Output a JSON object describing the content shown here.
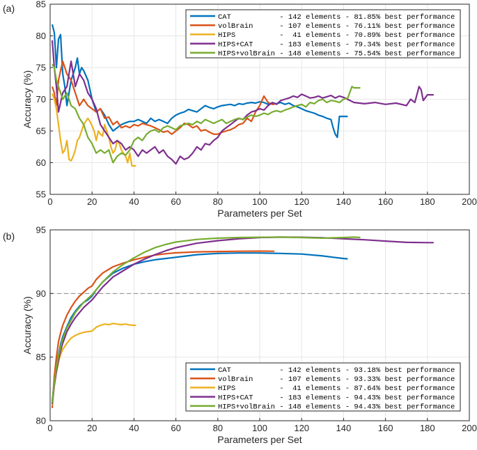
{
  "chart_data": [
    {
      "type": "line",
      "panel_label": "(a)",
      "xlabel": "Parameters per Set",
      "ylabel": "Accuracy (%)",
      "xlim": [
        0,
        200
      ],
      "ylim": [
        55,
        85
      ],
      "xticks": [
        "0",
        "20",
        "40",
        "60",
        "80",
        "100",
        "120",
        "140",
        "160",
        "180",
        "200"
      ],
      "yticks": [
        "55",
        "60",
        "65",
        "70",
        "75",
        "80",
        "85"
      ],
      "legend_position": "top-right",
      "series": [
        {
          "name": "CAT",
          "legend": "CAT           - 142 elements - 81.85% best performance",
          "color": "#0072BD",
          "x": [
            1,
            2,
            3,
            4,
            5,
            6,
            7,
            8,
            10,
            12,
            13,
            14,
            15,
            16,
            18,
            20,
            22,
            24,
            26,
            28,
            30,
            32,
            34,
            36,
            38,
            40,
            42,
            44,
            46,
            48,
            50,
            52,
            54,
            56,
            58,
            60,
            62,
            64,
            66,
            68,
            70,
            72,
            74,
            76,
            78,
            80,
            82,
            84,
            86,
            88,
            90,
            92,
            94,
            96,
            98,
            100,
            102,
            104,
            106,
            108,
            110,
            112,
            114,
            116,
            118,
            120,
            122,
            124,
            126,
            128,
            130,
            132,
            134,
            135,
            136,
            137,
            138,
            139,
            140,
            141,
            142
          ],
          "y": [
            81.8,
            80.5,
            75,
            79.5,
            80.2,
            74,
            72,
            69,
            73,
            75,
            76.5,
            74,
            75,
            74.5,
            73,
            70,
            68,
            68.5,
            67.5,
            66,
            65,
            65.5,
            66,
            66.3,
            66.5,
            66.5,
            66.8,
            66.5,
            66.2,
            67,
            66.5,
            66.8,
            66.5,
            66.2,
            67,
            67.5,
            67.8,
            68,
            68.4,
            68.2,
            68,
            68.5,
            69,
            68.7,
            68.5,
            68.8,
            69,
            69.1,
            69.2,
            69,
            69.3,
            69.2,
            69.4,
            69.5,
            69.4,
            69.6,
            69.5,
            69.2,
            69.4,
            69.3,
            69.5,
            69.2,
            69.4,
            69,
            68.8,
            68.5,
            68.2,
            68,
            67.8,
            67.5,
            67.3,
            67,
            66.8,
            65.5,
            64.5,
            64,
            67.3,
            67.3,
            67.3,
            67.3,
            67.3
          ]
        },
        {
          "name": "volBrain",
          "legend": "volBrain      - 107 elements - 76.11% best performance",
          "color": "#D95319",
          "x": [
            1,
            2,
            3,
            4,
            5,
            6,
            7,
            8,
            10,
            12,
            14,
            16,
            18,
            20,
            22,
            24,
            26,
            28,
            30,
            32,
            34,
            36,
            38,
            40,
            42,
            44,
            46,
            48,
            50,
            52,
            54,
            56,
            58,
            60,
            62,
            64,
            66,
            68,
            70,
            72,
            74,
            76,
            78,
            80,
            82,
            84,
            86,
            88,
            90,
            92,
            94,
            96,
            98,
            100,
            102,
            104,
            106,
            107
          ],
          "y": [
            72,
            71,
            69,
            73,
            74.5,
            76,
            75,
            74,
            73,
            71,
            69,
            70,
            69,
            68.5,
            68,
            68.5,
            67,
            67.2,
            66,
            66.5,
            65.5,
            65.8,
            65.5,
            66,
            65.8,
            66.2,
            66,
            65.8,
            65.5,
            65.2,
            64.8,
            65,
            64.5,
            65,
            65.5,
            66.2,
            66,
            65.5,
            65.8,
            65,
            65.2,
            64.8,
            64.5,
            64.5,
            64.8,
            65,
            65.2,
            65.5,
            66,
            66.2,
            67,
            66.5,
            68,
            69,
            70.5,
            69.5,
            69.2,
            69.2
          ]
        },
        {
          "name": "HIPS",
          "legend": "HIPS          -  41 elements - 70.89% best performance",
          "color": "#EDB120",
          "x": [
            1,
            2,
            3,
            4,
            5,
            6,
            7,
            8,
            9,
            10,
            11,
            12,
            13,
            14,
            15,
            16,
            17,
            18,
            19,
            20,
            21,
            22,
            23,
            24,
            25,
            26,
            27,
            28,
            29,
            30,
            31,
            32,
            33,
            34,
            35,
            36,
            37,
            38,
            39,
            40,
            41
          ],
          "y": [
            70.9,
            70,
            68.5,
            66,
            63.5,
            61.5,
            62,
            63.5,
            60.5,
            60.3,
            61,
            62,
            63.5,
            64,
            65,
            66,
            66.5,
            67,
            66.5,
            65.8,
            65,
            63.5,
            65,
            64.5,
            64.2,
            66,
            65,
            64,
            62.5,
            61.5,
            62,
            63.5,
            63,
            62,
            61.5,
            61,
            60,
            61.5,
            59.5,
            59.5,
            59.5
          ]
        },
        {
          "name": "HIPS+CAT",
          "legend": "HIPS+CAT      - 183 elements - 79.34% best performance",
          "color": "#7E2F8E",
          "x": [
            1,
            2,
            3,
            4,
            6,
            8,
            10,
            12,
            14,
            16,
            18,
            20,
            22,
            24,
            26,
            28,
            30,
            32,
            34,
            36,
            38,
            40,
            42,
            44,
            46,
            48,
            50,
            52,
            54,
            56,
            58,
            60,
            62,
            64,
            66,
            68,
            70,
            72,
            74,
            76,
            78,
            80,
            82,
            84,
            86,
            88,
            90,
            92,
            94,
            96,
            98,
            100,
            102,
            104,
            106,
            108,
            110,
            112,
            114,
            116,
            118,
            120,
            122,
            124,
            126,
            128,
            130,
            132,
            134,
            136,
            138,
            140,
            145,
            150,
            155,
            160,
            165,
            170,
            172,
            174,
            176,
            177,
            178,
            180,
            183
          ],
          "y": [
            79.3,
            75,
            72,
            68,
            71,
            72,
            76,
            72,
            74,
            73,
            71,
            70,
            68.5,
            66,
            65,
            64,
            63,
            63.5,
            63,
            62,
            62.5,
            62,
            61,
            62,
            61.5,
            62,
            62.5,
            61.5,
            62,
            61,
            60.5,
            59.8,
            61,
            60.5,
            60.8,
            61.5,
            62.5,
            62,
            63,
            62.8,
            63.5,
            64,
            65,
            65.5,
            66,
            66.5,
            67,
            66.8,
            67.5,
            68,
            68.2,
            68.5,
            68.3,
            69,
            69.5,
            69.2,
            69.8,
            70,
            70.2,
            70.5,
            70.3,
            70.8,
            70.5,
            70.2,
            70.3,
            70.5,
            70.2,
            70.4,
            70.6,
            70.2,
            70.5,
            70.3,
            69.5,
            69.3,
            69.5,
            69.2,
            69.4,
            69,
            70,
            69.5,
            72,
            71.5,
            69.8,
            70.7,
            70.7
          ]
        },
        {
          "name": "HIPS+volBrain",
          "legend": "HIPS+volBrain - 148 elements - 75.54% best performance",
          "color": "#77AC30",
          "x": [
            1,
            2,
            3,
            4,
            6,
            8,
            10,
            12,
            14,
            16,
            18,
            20,
            22,
            24,
            26,
            28,
            30,
            32,
            34,
            36,
            38,
            40,
            42,
            44,
            46,
            48,
            50,
            52,
            54,
            56,
            58,
            60,
            62,
            64,
            66,
            68,
            70,
            72,
            74,
            76,
            78,
            80,
            82,
            84,
            86,
            88,
            90,
            92,
            94,
            96,
            98,
            100,
            102,
            104,
            106,
            108,
            110,
            112,
            114,
            116,
            118,
            120,
            122,
            124,
            126,
            128,
            130,
            132,
            134,
            136,
            138,
            140,
            142,
            144,
            145,
            146,
            148
          ],
          "y": [
            75.5,
            75,
            73,
            72,
            70,
            71,
            69,
            68.5,
            67,
            66,
            64,
            63,
            61.5,
            62,
            61.5,
            62,
            60,
            61,
            61.5,
            61.2,
            62,
            63.5,
            64,
            63.5,
            64.5,
            65,
            65.2,
            64.8,
            65.5,
            65.8,
            65.5,
            65.2,
            65.8,
            66,
            66.2,
            66,
            66.5,
            66.2,
            66.8,
            66.5,
            66.2,
            66.5,
            66.8,
            66.2,
            66.5,
            66.8,
            67,
            66.8,
            67.2,
            67.5,
            67.3,
            67.5,
            67.8,
            67.6,
            68,
            68.2,
            68,
            68.3,
            68.5,
            68.8,
            69,
            69.2,
            68.8,
            69.5,
            69.3,
            69.8,
            70,
            69.5,
            69.8,
            69.7,
            69.5,
            70,
            70.2,
            72,
            71.8,
            71.8,
            71.8
          ]
        }
      ]
    },
    {
      "type": "line",
      "panel_label": "(b)",
      "xlabel": "Parameters per Set",
      "ylabel": "Accuracy (%)",
      "xlim": [
        0,
        200
      ],
      "ylim": [
        80,
        95
      ],
      "xticks": [
        "0",
        "20",
        "40",
        "60",
        "80",
        "100",
        "120",
        "140",
        "160",
        "180",
        "200"
      ],
      "yticks": [
        "80",
        "85",
        "90",
        "95"
      ],
      "reference_line": 90,
      "legend_position": "bottom-right",
      "series": [
        {
          "name": "CAT",
          "legend": "CAT           - 142 elements - 93.18% best performance",
          "color": "#0072BD",
          "x": [
            1,
            2,
            3,
            4,
            5,
            6,
            8,
            10,
            12,
            14,
            16,
            18,
            20,
            22,
            25,
            30,
            35,
            40,
            45,
            50,
            55,
            60,
            70,
            80,
            90,
            100,
            110,
            120,
            130,
            135,
            140,
            142
          ],
          "y": [
            81.5,
            83.2,
            84.3,
            85.2,
            86,
            86.6,
            87.4,
            88.1,
            88.6,
            89,
            89.3,
            89.5,
            89.8,
            90.3,
            90.9,
            91.6,
            92,
            92.3,
            92.5,
            92.65,
            92.75,
            92.85,
            93.05,
            93.15,
            93.18,
            93.18,
            93.15,
            93.1,
            92.95,
            92.85,
            92.75,
            92.72
          ]
        },
        {
          "name": "volBrain",
          "legend": "volBrain      - 107 elements - 93.33% best performance",
          "color": "#D95319",
          "x": [
            1,
            2,
            3,
            4,
            5,
            6,
            8,
            10,
            12,
            14,
            16,
            18,
            20,
            22,
            25,
            30,
            35,
            40,
            45,
            50,
            55,
            60,
            70,
            80,
            90,
            100,
            107
          ],
          "y": [
            81,
            83.5,
            85,
            86.2,
            86.9,
            87.5,
            88.3,
            88.9,
            89.4,
            89.8,
            90.1,
            90.4,
            90.6,
            91.1,
            91.6,
            92.1,
            92.4,
            92.65,
            92.85,
            93.02,
            93.12,
            93.2,
            93.27,
            93.3,
            93.32,
            93.33,
            93.32
          ]
        },
        {
          "name": "HIPS",
          "legend": "HIPS          -  41 elements - 87.64% best performance",
          "color": "#EDB120",
          "x": [
            1,
            2,
            3,
            4,
            5,
            6,
            8,
            10,
            12,
            14,
            16,
            18,
            20,
            22,
            24,
            26,
            28,
            30,
            32,
            34,
            36,
            38,
            40,
            41
          ],
          "y": [
            81.2,
            82.8,
            83.8,
            84.6,
            85.2,
            85.6,
            86.1,
            86.5,
            86.7,
            86.85,
            86.95,
            87,
            87.05,
            87.35,
            87.5,
            87.6,
            87.55,
            87.64,
            87.6,
            87.55,
            87.6,
            87.52,
            87.5,
            87.5
          ]
        },
        {
          "name": "HIPS+CAT",
          "legend": "HIPS+CAT      - 183 elements - 94.43% best performance",
          "color": "#7E2F8E",
          "x": [
            1,
            2,
            3,
            4,
            5,
            6,
            8,
            10,
            12,
            14,
            16,
            18,
            20,
            22,
            25,
            30,
            35,
            40,
            45,
            50,
            55,
            60,
            70,
            80,
            90,
            100,
            110,
            120,
            130,
            140,
            150,
            160,
            170,
            180,
            183
          ],
          "y": [
            81.3,
            82.8,
            83.9,
            84.8,
            85.5,
            86.1,
            87,
            87.6,
            88.1,
            88.5,
            88.9,
            89.2,
            89.5,
            89.9,
            90.5,
            91.3,
            91.8,
            92.3,
            92.7,
            93.05,
            93.35,
            93.6,
            93.95,
            94.15,
            94.3,
            94.4,
            94.43,
            94.42,
            94.38,
            94.3,
            94.22,
            94.12,
            94.02,
            94,
            94
          ]
        },
        {
          "name": "HIPS+volBrain",
          "legend": "HIPS+volBrain - 148 elements - 94.43% best performance",
          "color": "#77AC30",
          "x": [
            1,
            2,
            3,
            4,
            5,
            6,
            8,
            10,
            12,
            14,
            16,
            18,
            20,
            22,
            25,
            30,
            35,
            40,
            45,
            50,
            55,
            60,
            70,
            80,
            90,
            100,
            110,
            120,
            130,
            140,
            145,
            148
          ],
          "y": [
            81.4,
            83,
            84.2,
            85.1,
            85.8,
            86.4,
            87.3,
            87.9,
            88.5,
            88.9,
            89.3,
            89.6,
            89.9,
            90.3,
            90.9,
            91.7,
            92.3,
            92.8,
            93.25,
            93.6,
            93.85,
            94.05,
            94.25,
            94.35,
            94.4,
            94.42,
            94.43,
            94.4,
            94.35,
            94.4,
            94.43,
            94.4
          ]
        }
      ]
    }
  ]
}
